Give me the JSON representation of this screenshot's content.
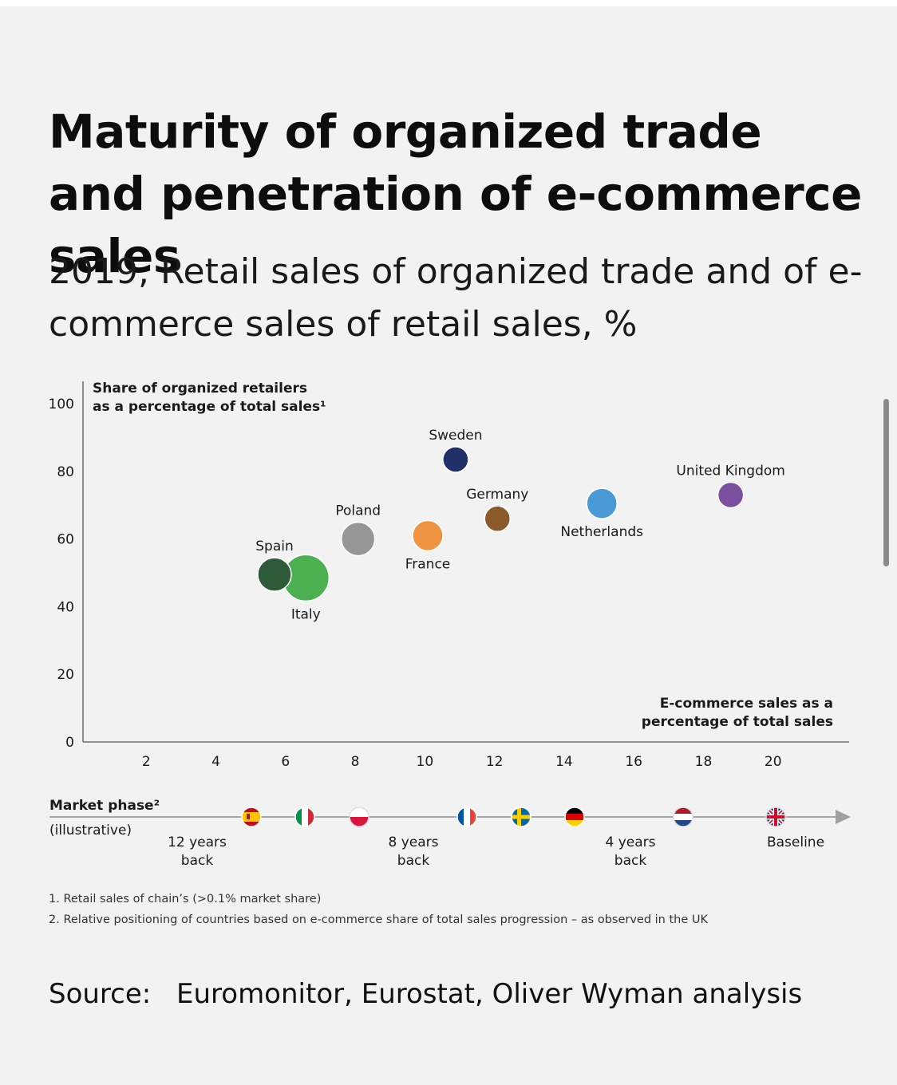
{
  "title": "Maturity of organized trade and penetration of e-commerce sales",
  "subtitle": "2019, Retail sales of organized trade and of e-commerce sales of retail sales, %",
  "chart_data": {
    "type": "scatter",
    "ylabel_line1": "Share of organized retailers",
    "ylabel_line2": "as a percentage of total sales¹",
    "xlabel_line1": "E-commerce sales as a",
    "xlabel_line2": "percentage of total sales",
    "xticks": [
      2,
      4,
      6,
      8,
      10,
      12,
      14,
      16,
      18,
      20
    ],
    "yticks": [
      0,
      20,
      40,
      60,
      80,
      100
    ],
    "xlim": [
      0,
      22
    ],
    "ylim": [
      0,
      100
    ],
    "points": [
      {
        "name": "Sweden",
        "x": 10.7,
        "y": 83.5,
        "color": "#22306a",
        "size": "small",
        "label_pos": "above"
      },
      {
        "name": "United Kingdom",
        "x": 18.6,
        "y": 73,
        "color": "#7b4fa0",
        "size": "small",
        "label_pos": "above"
      },
      {
        "name": "Netherlands",
        "x": 14.9,
        "y": 70.5,
        "color": "#4a9ad6",
        "size": "medium",
        "label_pos": "below"
      },
      {
        "name": "Germany",
        "x": 11.9,
        "y": 66,
        "color": "#8b5a2b",
        "size": "small",
        "label_pos": "above"
      },
      {
        "name": "France",
        "x": 9.9,
        "y": 61,
        "color": "#ee9340",
        "size": "medium",
        "label_pos": "below"
      },
      {
        "name": "Poland",
        "x": 7.9,
        "y": 60,
        "color": "#969696",
        "size": "large",
        "label_pos": "above"
      },
      {
        "name": "Italy",
        "x": 6.4,
        "y": 48.5,
        "color": "#4caf50",
        "size": "xlarge",
        "label_pos": "below"
      },
      {
        "name": "Spain",
        "x": 5.5,
        "y": 49.5,
        "color": "#2f5a3a",
        "size": "large",
        "label_pos": "above"
      }
    ]
  },
  "market_phase": {
    "label": "Market phase²",
    "sublabel": "(illustrative)",
    "milestones": [
      {
        "line1": "12 years",
        "line2": "back"
      },
      {
        "line1": "8 years",
        "line2": "back"
      },
      {
        "line1": "4 years",
        "line2": "back"
      },
      {
        "line1": "Baseline",
        "line2": ""
      }
    ],
    "flags": [
      "spain-flag",
      "italy-flag",
      "poland-flag",
      "france-flag",
      "sweden-flag",
      "germany-flag",
      "netherlands-flag",
      "uk-flag"
    ]
  },
  "footnotes": [
    "1. Retail sales of chain’s (>0.1% market share)",
    "2. Relative positioning of countries based on e-commerce share of total sales progression – as observed in the UK"
  ],
  "source": {
    "label": "Source:",
    "text": "Euromonitor, Eurostat, Oliver Wyman analysis"
  }
}
